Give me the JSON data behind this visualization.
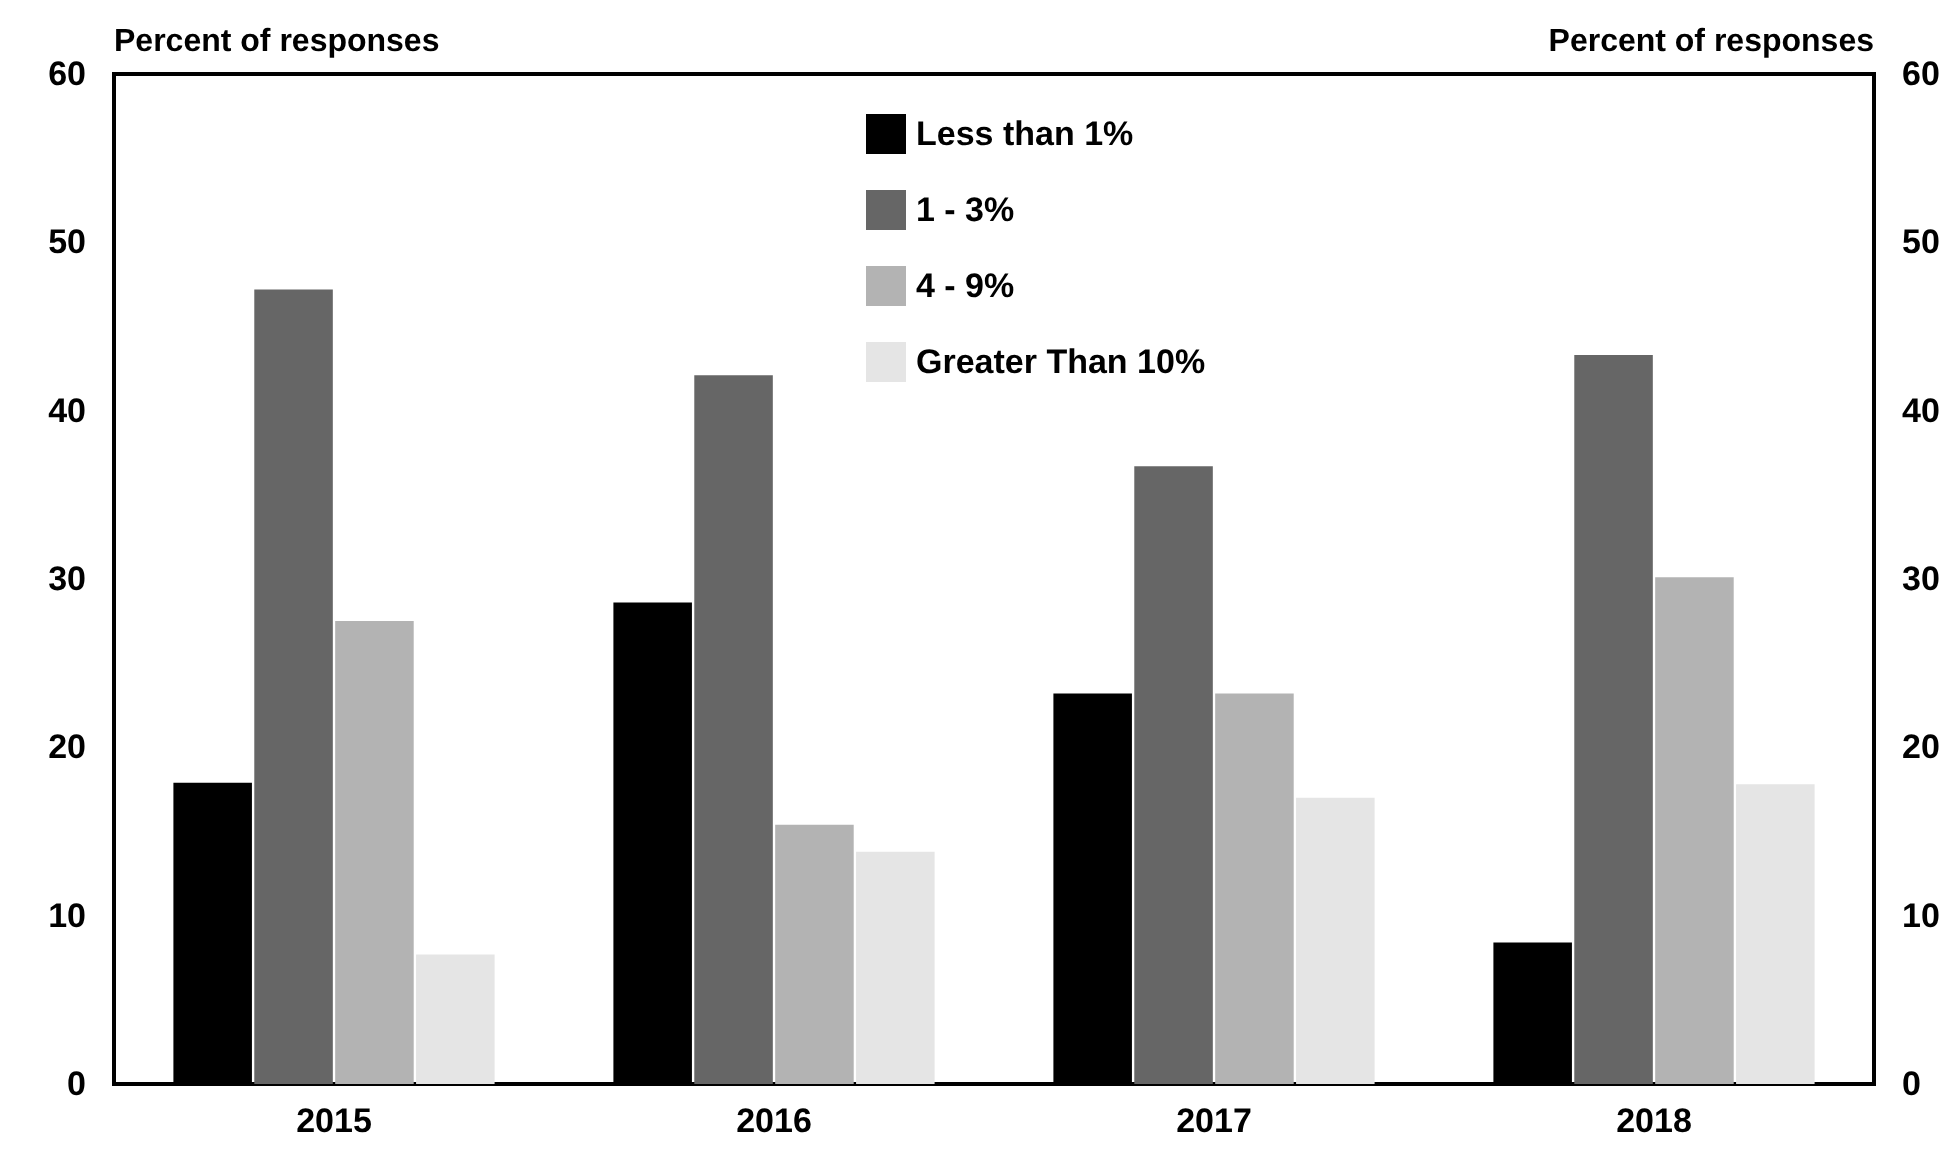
{
  "chart_data": {
    "type": "bar",
    "ylabel": "Percent of responses",
    "y2label": "Percent of responses",
    "categories": [
      "2015",
      "2016",
      "2017",
      "2018"
    ],
    "series": [
      {
        "name": "Less than 1%",
        "color": "#000000",
        "values": [
          17.9,
          28.6,
          23.2,
          8.4
        ]
      },
      {
        "name": "1 - 3%",
        "color": "#666666",
        "values": [
          47.2,
          42.1,
          36.7,
          43.3
        ]
      },
      {
        "name": "4 - 9%",
        "color": "#b3b3b3",
        "values": [
          27.5,
          15.4,
          23.2,
          30.1
        ]
      },
      {
        "name": "Greater Than 10%",
        "color": "#e5e5e5",
        "values": [
          7.7,
          13.8,
          17.0,
          17.8
        ]
      }
    ],
    "ylim": [
      0,
      60
    ],
    "yticks": [
      0,
      10,
      20,
      30,
      40,
      50,
      60
    ],
    "y2lim": [
      0,
      60
    ],
    "y2ticks": [
      0,
      10,
      20,
      30,
      40,
      50,
      60
    ],
    "grid": false,
    "legend": "top"
  }
}
